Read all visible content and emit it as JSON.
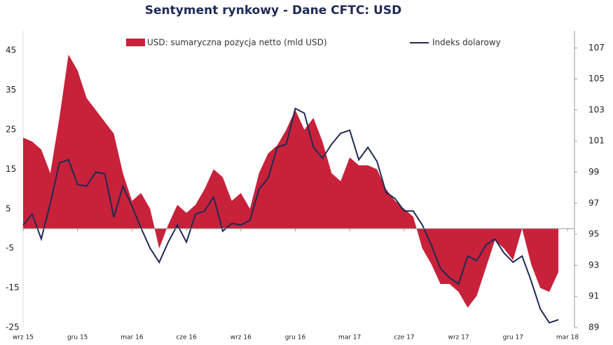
{
  "chart_data": {
    "type": "area-line",
    "title": "Sentyment rynkowy - Dane CFTC:  USD",
    "categories": [
      "wrz 15",
      null,
      null,
      null,
      null,
      null,
      "gru 15",
      null,
      null,
      null,
      null,
      null,
      "mar 16",
      null,
      null,
      null,
      null,
      null,
      "cze 16",
      null,
      null,
      null,
      null,
      null,
      "wrz 16",
      null,
      null,
      null,
      null,
      null,
      "gru 16",
      null,
      null,
      null,
      null,
      null,
      "mar 17",
      null,
      null,
      null,
      null,
      null,
      "cze 17",
      null,
      null,
      null,
      null,
      null,
      "wrz 17",
      null,
      null,
      null,
      null,
      null,
      "gru 17",
      null,
      null,
      null,
      null,
      null,
      "mar 18"
    ],
    "series": [
      {
        "name": "USD: sumaryczna pozycja netto (mld USD)",
        "color": "#c8213a",
        "values": [
          23,
          22,
          20,
          14,
          28,
          44,
          40,
          33,
          30,
          27,
          24,
          14,
          7,
          9,
          5,
          -5,
          1,
          6,
          4,
          6,
          10,
          15,
          13,
          7,
          9,
          5,
          14,
          19,
          21,
          25,
          30,
          25,
          28,
          22,
          14,
          12,
          18,
          16,
          16,
          15,
          10,
          7,
          5,
          3,
          -5,
          -9,
          -14,
          -14,
          -16,
          -20,
          -17,
          -10,
          -3,
          -5,
          -8,
          0,
          -9,
          -15,
          -16,
          -11,
          null
        ]
      },
      {
        "name": "Indeks dolarowy",
        "color": "#1f2a55",
        "axis": "y2",
        "values": [
          95.6,
          96.3,
          94.7,
          97,
          99.6,
          99.8,
          98.2,
          98.1,
          99,
          98.9,
          96.1,
          98.1,
          96.8,
          95.4,
          94.1,
          93.2,
          94.5,
          95.6,
          94.5,
          96.3,
          96.5,
          97.4,
          95.2,
          95.7,
          95.6,
          95.9,
          97.9,
          98.6,
          100.6,
          100.8,
          103.1,
          102.8,
          100.6,
          99.9,
          100.8,
          101.5,
          101.7,
          99.8,
          100.6,
          99.7,
          97.7,
          97.3,
          96.5,
          96.5,
          95.6,
          94.3,
          92.8,
          92.2,
          91.8,
          93.6,
          93.3,
          94.3,
          94.7,
          93.8,
          93.2,
          93.6,
          92,
          90.2,
          89.3,
          89.5,
          null
        ]
      }
    ],
    "ylim": [
      -25,
      50
    ],
    "yticks": [
      -25,
      -15,
      -5,
      5,
      15,
      25,
      35,
      45
    ],
    "y2lim": [
      89,
      108.1
    ],
    "y2ticks": [
      89,
      91,
      93,
      95,
      97,
      99,
      101,
      103,
      105,
      107
    ]
  }
}
